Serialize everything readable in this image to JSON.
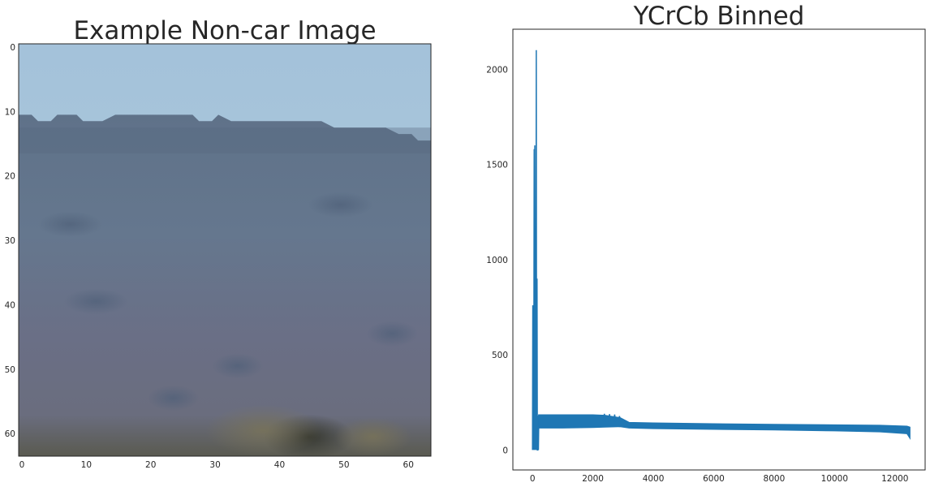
{
  "chart_data": [
    {
      "type": "image",
      "title": "Example Non-car Image",
      "xlabel": "",
      "ylabel": "",
      "grid": false,
      "xlim": [
        -0.5,
        63.5
      ],
      "ylim": [
        63.5,
        -0.5
      ],
      "xticks": [
        0,
        10,
        20,
        30,
        40,
        50,
        60
      ],
      "yticks": [
        0,
        10,
        20,
        30,
        40,
        50,
        60
      ],
      "image_size": [
        64,
        64
      ],
      "description_colors": {
        "sky_top": "#a6c4dc",
        "sky_horizon": "#aac8db",
        "hills": "#5d7089",
        "ground": "#6a6e80",
        "bottom": "#3a3a2e"
      }
    },
    {
      "type": "line",
      "title": "YCrCb Binned",
      "xlabel": "",
      "ylabel": "",
      "grid": false,
      "line_color": "#1f77b4",
      "xlim": [
        -650,
        13000
      ],
      "ylim": [
        -105,
        2210
      ],
      "xticks": [
        0,
        2000,
        4000,
        6000,
        8000,
        10000,
        12000
      ],
      "yticks": [
        0,
        500,
        1000,
        1500,
        2000
      ],
      "series_points": [
        [
          0,
          0
        ],
        [
          10,
          760
        ],
        [
          20,
          0
        ],
        [
          30,
          640
        ],
        [
          40,
          0
        ],
        [
          55,
          1580
        ],
        [
          65,
          0
        ],
        [
          75,
          1600
        ],
        [
          85,
          0
        ],
        [
          100,
          700
        ],
        [
          110,
          0
        ],
        [
          125,
          2100
        ],
        [
          135,
          0
        ],
        [
          150,
          900
        ],
        [
          160,
          0
        ],
        [
          175,
          0
        ],
        [
          185,
          180
        ],
        [
          195,
          0
        ],
        [
          210,
          185
        ]
      ],
      "band": [
        {
          "x": 200,
          "lo": 115,
          "hi": 185
        },
        {
          "x": 1000,
          "lo": 115,
          "hi": 185
        },
        {
          "x": 2000,
          "lo": 118,
          "hi": 185
        },
        {
          "x": 2400,
          "lo": 120,
          "hi": 182
        },
        {
          "x": 2900,
          "lo": 122,
          "hi": 170
        },
        {
          "x": 3200,
          "lo": 115,
          "hi": 145
        },
        {
          "x": 4000,
          "lo": 112,
          "hi": 142
        },
        {
          "x": 6000,
          "lo": 108,
          "hi": 138
        },
        {
          "x": 8000,
          "lo": 105,
          "hi": 135
        },
        {
          "x": 10000,
          "lo": 100,
          "hi": 132
        },
        {
          "x": 11500,
          "lo": 95,
          "hi": 130
        },
        {
          "x": 12400,
          "lo": 85,
          "hi": 125
        },
        {
          "x": 12500,
          "lo": 60,
          "hi": 120
        }
      ]
    }
  ]
}
